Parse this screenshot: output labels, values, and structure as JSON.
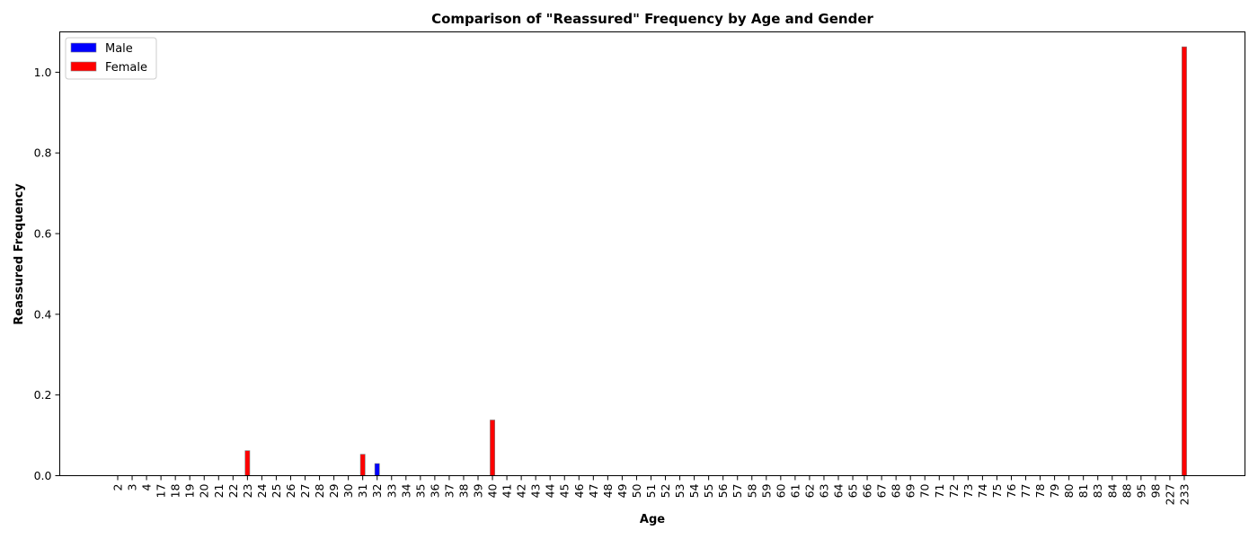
{
  "chart_data": {
    "type": "bar",
    "title": "Comparison of \"Reassured\" Frequency by Age and Gender",
    "xlabel": "Age",
    "ylabel": "Reassured Frequency",
    "ylim": [
      0,
      1.1
    ],
    "yticks": [
      "0.0",
      "0.2",
      "0.4",
      "0.6",
      "0.8",
      "1.0"
    ],
    "grid": false,
    "legend_position": "top-left",
    "categories": [
      "2",
      "3",
      "4",
      "17",
      "18",
      "19",
      "20",
      "21",
      "22",
      "23",
      "24",
      "25",
      "26",
      "27",
      "28",
      "29",
      "30",
      "31",
      "32",
      "33",
      "34",
      "35",
      "36",
      "37",
      "38",
      "39",
      "40",
      "41",
      "42",
      "43",
      "44",
      "45",
      "46",
      "47",
      "48",
      "49",
      "50",
      "51",
      "52",
      "53",
      "54",
      "55",
      "56",
      "57",
      "58",
      "59",
      "60",
      "61",
      "62",
      "63",
      "64",
      "65",
      "66",
      "67",
      "68",
      "69",
      "70",
      "71",
      "72",
      "73",
      "74",
      "75",
      "76",
      "77",
      "78",
      "79",
      "80",
      "81",
      "83",
      "84",
      "88",
      "95",
      "98",
      "227",
      "233"
    ],
    "series": [
      {
        "name": "Male",
        "color": "#0000ff",
        "values": [
          0,
          0,
          0,
          0,
          0,
          0,
          0,
          0,
          0,
          0,
          0,
          0,
          0,
          0,
          0,
          0,
          0,
          0,
          0.03,
          0,
          0,
          0,
          0,
          0,
          0,
          0,
          0,
          0,
          0,
          0,
          0,
          0,
          0,
          0,
          0,
          0,
          0,
          0,
          0,
          0,
          0,
          0,
          0,
          0,
          0,
          0,
          0,
          0,
          0,
          0,
          0,
          0,
          0,
          0,
          0,
          0,
          0,
          0,
          0,
          0,
          0,
          0,
          0,
          0,
          0,
          0,
          0,
          0,
          0,
          0,
          0,
          0,
          0,
          0,
          0
        ]
      },
      {
        "name": "Female",
        "color": "#ff0000",
        "values": [
          0,
          0,
          0,
          0,
          0,
          0,
          0,
          0,
          0,
          0.062,
          0,
          0,
          0,
          0,
          0,
          0,
          0,
          0.053,
          0,
          0,
          0,
          0,
          0,
          0,
          0,
          0,
          0.138,
          0,
          0,
          0,
          0,
          0,
          0,
          0,
          0,
          0,
          0,
          0,
          0,
          0,
          0,
          0,
          0,
          0,
          0,
          0,
          0,
          0,
          0,
          0,
          0,
          0,
          0,
          0,
          0,
          0,
          0,
          0,
          0,
          0,
          0,
          0,
          0,
          0,
          0,
          0,
          0,
          0,
          0,
          0,
          0,
          0,
          0,
          0,
          1.063
        ]
      }
    ]
  }
}
